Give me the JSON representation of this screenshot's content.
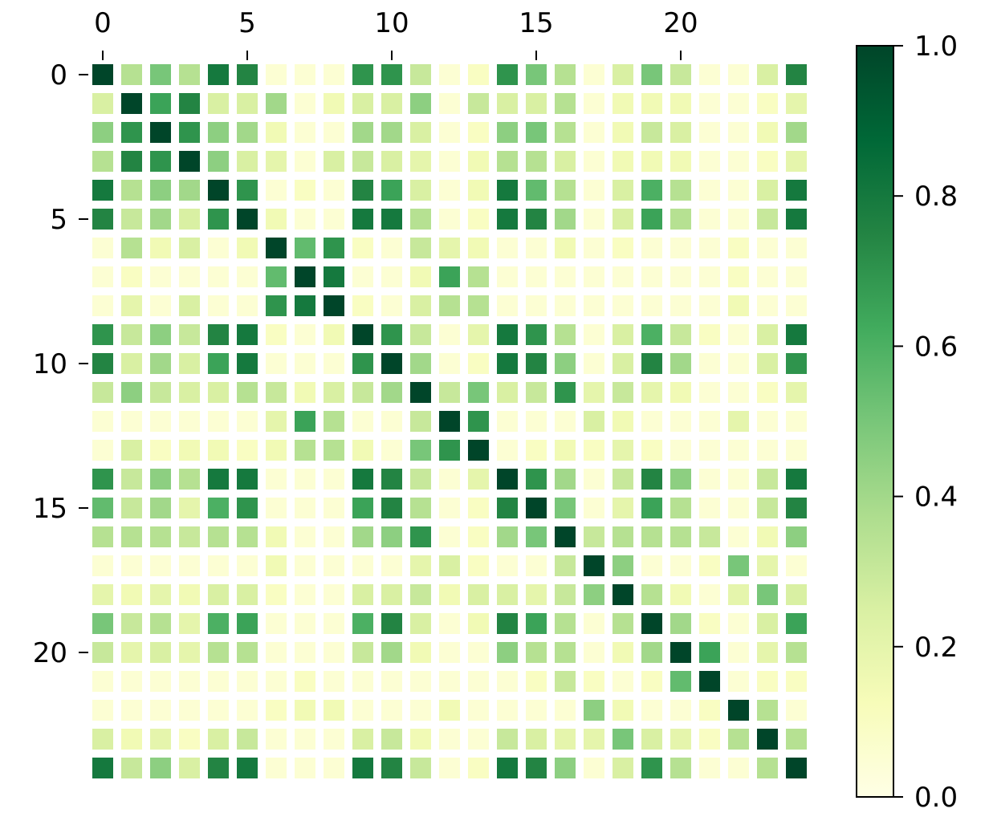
{
  "chart_data": {
    "type": "heatmap",
    "title": "",
    "xlabel": "",
    "ylabel": "",
    "colormap": "YlGn",
    "colors": [
      "#ffffe5",
      "#f7fcb9",
      "#d9f0a3",
      "#addd8e",
      "#78c679",
      "#41ab5d",
      "#238443",
      "#006837",
      "#004529"
    ],
    "value_range": [
      0.0,
      1.0
    ],
    "x_ticks": [
      0,
      5,
      10,
      15,
      20
    ],
    "y_ticks": [
      0,
      5,
      10,
      15,
      20
    ],
    "x_tick_labels": [
      "0",
      "5",
      "10",
      "15",
      "20"
    ],
    "y_tick_labels": [
      "0",
      "5",
      "10",
      "15",
      "20"
    ],
    "colorbar_ticks": [
      0.0,
      0.2,
      0.4,
      0.6,
      0.8,
      1.0
    ],
    "colorbar_tick_labels": [
      "0.0",
      "0.2",
      "0.4",
      "0.6",
      "0.8",
      "1.0"
    ],
    "matrix": [
      [
        1.0,
        0.35,
        0.5,
        0.35,
        0.8,
        0.75,
        0.05,
        0.05,
        0.05,
        0.7,
        0.7,
        0.3,
        0.05,
        0.1,
        0.7,
        0.5,
        0.35,
        0.05,
        0.25,
        0.5,
        0.3,
        0.05,
        0.05,
        0.25,
        0.75
      ],
      [
        0.25,
        1.0,
        0.65,
        0.75,
        0.25,
        0.25,
        0.4,
        0.05,
        0.15,
        0.25,
        0.25,
        0.45,
        0.05,
        0.3,
        0.25,
        0.25,
        0.35,
        0.05,
        0.15,
        0.15,
        0.15,
        0.05,
        0.05,
        0.1,
        0.2
      ],
      [
        0.45,
        0.7,
        1.0,
        0.7,
        0.45,
        0.4,
        0.15,
        0.05,
        0.05,
        0.4,
        0.4,
        0.25,
        0.05,
        0.1,
        0.45,
        0.5,
        0.35,
        0.05,
        0.15,
        0.3,
        0.25,
        0.05,
        0.05,
        0.15,
        0.4
      ],
      [
        0.35,
        0.75,
        0.7,
        1.0,
        0.45,
        0.25,
        0.2,
        0.05,
        0.25,
        0.3,
        0.25,
        0.2,
        0.05,
        0.15,
        0.35,
        0.35,
        0.25,
        0.05,
        0.15,
        0.15,
        0.15,
        0.05,
        0.05,
        0.1,
        0.2
      ],
      [
        0.8,
        0.35,
        0.45,
        0.4,
        1.0,
        0.7,
        0.05,
        0.1,
        0.05,
        0.75,
        0.65,
        0.25,
        0.05,
        0.15,
        0.8,
        0.55,
        0.35,
        0.05,
        0.25,
        0.6,
        0.35,
        0.05,
        0.05,
        0.25,
        0.8
      ],
      [
        0.75,
        0.3,
        0.4,
        0.25,
        0.7,
        1.0,
        0.15,
        0.05,
        0.05,
        0.8,
        0.8,
        0.35,
        0.05,
        0.1,
        0.8,
        0.75,
        0.4,
        0.05,
        0.25,
        0.65,
        0.35,
        0.05,
        0.05,
        0.3,
        0.8
      ],
      [
        0.05,
        0.35,
        0.15,
        0.25,
        0.05,
        0.15,
        1.0,
        0.55,
        0.7,
        0.1,
        0.05,
        0.3,
        0.2,
        0.15,
        0.05,
        0.05,
        0.15,
        0.05,
        0.1,
        0.05,
        0.05,
        0.05,
        0.1,
        0.05,
        0.05
      ],
      [
        0.05,
        0.1,
        0.05,
        0.05,
        0.05,
        0.05,
        0.55,
        1.0,
        0.8,
        0.05,
        0.05,
        0.15,
        0.65,
        0.35,
        0.05,
        0.05,
        0.05,
        0.05,
        0.05,
        0.05,
        0.05,
        0.05,
        0.1,
        0.05,
        0.05
      ],
      [
        0.05,
        0.2,
        0.05,
        0.25,
        0.05,
        0.05,
        0.7,
        0.8,
        1.0,
        0.1,
        0.05,
        0.25,
        0.35,
        0.35,
        0.05,
        0.05,
        0.05,
        0.05,
        0.05,
        0.05,
        0.05,
        0.05,
        0.15,
        0.05,
        0.05
      ],
      [
        0.7,
        0.3,
        0.45,
        0.3,
        0.75,
        0.8,
        0.1,
        0.05,
        0.15,
        1.0,
        0.7,
        0.3,
        0.05,
        0.2,
        0.8,
        0.7,
        0.35,
        0.05,
        0.25,
        0.6,
        0.3,
        0.1,
        0.05,
        0.25,
        0.8
      ],
      [
        0.75,
        0.25,
        0.4,
        0.25,
        0.65,
        0.8,
        0.05,
        0.05,
        0.05,
        0.7,
        1.0,
        0.4,
        0.05,
        0.1,
        0.8,
        0.75,
        0.45,
        0.05,
        0.25,
        0.75,
        0.4,
        0.05,
        0.05,
        0.25,
        0.7
      ],
      [
        0.3,
        0.45,
        0.3,
        0.25,
        0.25,
        0.35,
        0.3,
        0.15,
        0.25,
        0.3,
        0.4,
        1.0,
        0.3,
        0.5,
        0.25,
        0.3,
        0.7,
        0.2,
        0.3,
        0.2,
        0.15,
        0.05,
        0.05,
        0.1,
        0.2
      ],
      [
        0.05,
        0.05,
        0.05,
        0.05,
        0.05,
        0.05,
        0.2,
        0.65,
        0.35,
        0.05,
        0.05,
        0.3,
        1.0,
        0.7,
        0.05,
        0.05,
        0.05,
        0.25,
        0.15,
        0.05,
        0.05,
        0.05,
        0.2,
        0.05,
        0.05
      ],
      [
        0.05,
        0.25,
        0.1,
        0.15,
        0.15,
        0.1,
        0.15,
        0.35,
        0.35,
        0.15,
        0.05,
        0.5,
        0.7,
        1.0,
        0.05,
        0.1,
        0.15,
        0.1,
        0.2,
        0.1,
        0.05,
        0.05,
        0.05,
        0.05,
        0.05
      ],
      [
        0.7,
        0.3,
        0.45,
        0.35,
        0.8,
        0.8,
        0.05,
        0.05,
        0.05,
        0.8,
        0.75,
        0.3,
        0.05,
        0.2,
        1.0,
        0.7,
        0.4,
        0.05,
        0.3,
        0.75,
        0.45,
        0.05,
        0.05,
        0.3,
        0.8
      ],
      [
        0.55,
        0.3,
        0.4,
        0.2,
        0.6,
        0.7,
        0.05,
        0.05,
        0.05,
        0.65,
        0.75,
        0.35,
        0.05,
        0.1,
        0.75,
        1.0,
        0.5,
        0.05,
        0.2,
        0.65,
        0.35,
        0.05,
        0.05,
        0.3,
        0.75
      ],
      [
        0.35,
        0.35,
        0.35,
        0.3,
        0.35,
        0.35,
        0.15,
        0.05,
        0.05,
        0.4,
        0.45,
        0.7,
        0.05,
        0.1,
        0.4,
        0.5,
        1.0,
        0.3,
        0.35,
        0.35,
        0.35,
        0.3,
        0.05,
        0.15,
        0.45
      ],
      [
        0.05,
        0.05,
        0.05,
        0.05,
        0.05,
        0.05,
        0.15,
        0.05,
        0.05,
        0.05,
        0.05,
        0.2,
        0.25,
        0.1,
        0.05,
        0.05,
        0.3,
        1.0,
        0.45,
        0.05,
        0.05,
        0.1,
        0.5,
        0.2,
        0.05
      ],
      [
        0.2,
        0.15,
        0.2,
        0.15,
        0.25,
        0.25,
        0.1,
        0.05,
        0.05,
        0.25,
        0.25,
        0.3,
        0.15,
        0.25,
        0.25,
        0.2,
        0.3,
        0.45,
        1.0,
        0.35,
        0.15,
        0.05,
        0.2,
        0.5,
        0.25
      ],
      [
        0.5,
        0.3,
        0.35,
        0.2,
        0.6,
        0.65,
        0.05,
        0.05,
        0.05,
        0.6,
        0.75,
        0.25,
        0.05,
        0.15,
        0.75,
        0.65,
        0.35,
        0.05,
        0.35,
        1.0,
        0.4,
        0.1,
        0.05,
        0.25,
        0.65
      ],
      [
        0.3,
        0.2,
        0.25,
        0.2,
        0.35,
        0.35,
        0.05,
        0.05,
        0.05,
        0.3,
        0.4,
        0.15,
        0.05,
        0.05,
        0.45,
        0.35,
        0.35,
        0.05,
        0.15,
        0.4,
        1.0,
        0.65,
        0.05,
        0.2,
        0.35
      ],
      [
        0.05,
        0.05,
        0.05,
        0.05,
        0.05,
        0.05,
        0.05,
        0.1,
        0.05,
        0.05,
        0.05,
        0.05,
        0.05,
        0.05,
        0.05,
        0.1,
        0.3,
        0.1,
        0.05,
        0.1,
        0.55,
        1.0,
        0.05,
        0.1,
        0.1
      ],
      [
        0.05,
        0.05,
        0.05,
        0.05,
        0.05,
        0.05,
        0.1,
        0.15,
        0.15,
        0.05,
        0.05,
        0.05,
        0.15,
        0.05,
        0.05,
        0.05,
        0.05,
        0.45,
        0.15,
        0.05,
        0.05,
        0.1,
        1.0,
        0.35,
        0.05
      ],
      [
        0.25,
        0.15,
        0.2,
        0.1,
        0.25,
        0.3,
        0.05,
        0.05,
        0.05,
        0.25,
        0.3,
        0.15,
        0.05,
        0.05,
        0.3,
        0.25,
        0.2,
        0.2,
        0.5,
        0.25,
        0.2,
        0.1,
        0.35,
        1.0,
        0.35
      ],
      [
        0.8,
        0.3,
        0.45,
        0.25,
        0.75,
        0.8,
        0.05,
        0.05,
        0.05,
        0.8,
        0.75,
        0.3,
        0.05,
        0.1,
        0.8,
        0.75,
        0.45,
        0.05,
        0.25,
        0.7,
        0.35,
        0.05,
        0.05,
        0.35,
        1.0
      ]
    ]
  }
}
